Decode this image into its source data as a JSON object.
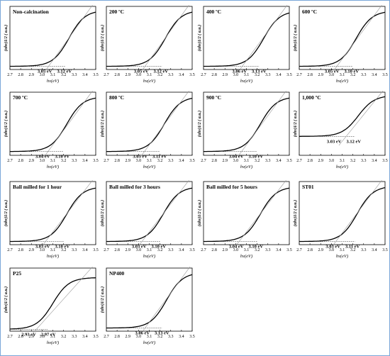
{
  "figure": {
    "panels": [
      {
        "title": "Non-calcination",
        "eg1": "3.05 eV",
        "eg2": "3.12 eV"
      },
      {
        "title": "200 ºC",
        "eg1": "3.05 eV",
        "eg2": "3.12 eV"
      },
      {
        "title": "400 ºC",
        "eg1": "3.06 eV",
        "eg2": "3.13 eV"
      },
      {
        "title": "600 ºC",
        "eg1": "3.05 eV",
        "eg2": "3.10 eV"
      },
      {
        "title": "700 ºC",
        "eg1": "3.04 eV",
        "eg2": "3.10 eV"
      },
      {
        "title": "800 ºC",
        "eg1": "3.05 eV",
        "eg2": "3.11 eV"
      },
      {
        "title": "900 ºC",
        "eg1": "3.04 eV",
        "eg2": "3.10 eV"
      },
      {
        "title": "1,000 ºC",
        "eg1": "3.03 eV",
        "eg2": "3.12 eV"
      },
      {
        "title": "Ball milled for 1 hour",
        "eg1": "3.03 eV",
        "eg2": "3.10 eV"
      },
      {
        "title": "Ball milled for 3 hours",
        "eg1": "3.03 eV",
        "eg2": "3.10 eV"
      },
      {
        "title": "Ball milled for 5 hours",
        "eg1": "3.04 eV",
        "eg2": "3.10 eV"
      },
      {
        "title": "ST01",
        "eg1": "3.03 eV",
        "eg2": "3.11 eV"
      },
      {
        "title": "P25",
        "eg1": "2.93 eV",
        "eg2": "2.97 eV"
      },
      {
        "title": "NP400",
        "eg1": "3.06 eV",
        "eg2": "3.13 eV"
      }
    ]
  },
  "chart_data": {
    "type": "line",
    "xlabel": "hv(eV)",
    "ylabel": "(αhν)1/2 ( a.u.)",
    "xlim": [
      2.7,
      3.5
    ],
    "xticks": [
      "2.7",
      "2.8",
      "2.9",
      "3.0",
      "3.1",
      "3.2",
      "3.3",
      "3.4",
      "3.5"
    ],
    "grid": false,
    "colors": {
      "curve": "#000000",
      "tangent": "#9a9a9a",
      "baseline": "#444444",
      "frame": "#7aa7d8"
    },
    "panels": [
      {
        "title": "Non-calcination",
        "edge": 3.12,
        "base": 0.05,
        "top": 0.94,
        "slope": 0.23,
        "baseline_x": [
          2.88,
          3.22
        ],
        "tangent_x": [
          3.03,
          3.47
        ]
      },
      {
        "title": "200 ºC",
        "edge": 3.12,
        "base": 0.05,
        "top": 0.94,
        "slope": 0.23,
        "baseline_x": [
          2.88,
          3.22
        ],
        "tangent_x": [
          3.03,
          3.47
        ]
      },
      {
        "title": "400 ºC",
        "edge": 3.13,
        "base": 0.05,
        "top": 0.93,
        "slope": 0.22,
        "baseline_x": [
          2.88,
          3.22
        ],
        "tangent_x": [
          3.03,
          3.48
        ]
      },
      {
        "title": "600 ºC",
        "edge": 3.1,
        "base": 0.05,
        "top": 0.93,
        "slope": 0.22,
        "baseline_x": [
          2.88,
          3.2
        ],
        "tangent_x": [
          3.02,
          3.47
        ]
      },
      {
        "title": "700 ºC",
        "edge": 3.1,
        "base": 0.06,
        "top": 0.93,
        "slope": 0.22,
        "baseline_x": [
          2.88,
          3.2
        ],
        "tangent_x": [
          3.02,
          3.47
        ]
      },
      {
        "title": "800 ºC",
        "edge": 3.11,
        "base": 0.06,
        "top": 0.93,
        "slope": 0.22,
        "baseline_x": [
          2.88,
          3.2
        ],
        "tangent_x": [
          3.02,
          3.47
        ]
      },
      {
        "title": "900 ºC",
        "edge": 3.1,
        "base": 0.06,
        "top": 0.93,
        "slope": 0.22,
        "baseline_x": [
          2.88,
          3.2
        ],
        "tangent_x": [
          3.02,
          3.47
        ]
      },
      {
        "title": "1,000 ºC",
        "edge": 3.12,
        "base": 0.3,
        "top": 0.95,
        "slope": 0.24,
        "baseline_x": [
          2.88,
          3.22
        ],
        "tangent_x": [
          3.07,
          3.48
        ]
      },
      {
        "title": "Ball milled for 1 hour",
        "edge": 3.1,
        "base": 0.05,
        "top": 0.92,
        "slope": 0.21,
        "baseline_x": [
          2.85,
          3.2
        ],
        "tangent_x": [
          3.0,
          3.47
        ]
      },
      {
        "title": "Ball milled for 3 hours",
        "edge": 3.1,
        "base": 0.05,
        "top": 0.92,
        "slope": 0.21,
        "baseline_x": [
          2.85,
          3.2
        ],
        "tangent_x": [
          3.0,
          3.47
        ]
      },
      {
        "title": "Ball milled for 5 hours",
        "edge": 3.1,
        "base": 0.05,
        "top": 0.92,
        "slope": 0.21,
        "baseline_x": [
          2.85,
          3.2
        ],
        "tangent_x": [
          3.0,
          3.47
        ]
      },
      {
        "title": "ST01",
        "edge": 3.11,
        "base": 0.05,
        "top": 0.93,
        "slope": 0.22,
        "baseline_x": [
          2.86,
          3.22
        ],
        "tangent_x": [
          3.01,
          3.47
        ]
      },
      {
        "title": "P25",
        "edge": 2.97,
        "base": 0.03,
        "top": 0.85,
        "slope": 0.25,
        "baseline_x": [
          2.72,
          3.05
        ],
        "tangent_x": [
          2.92,
          3.47
        ]
      },
      {
        "title": "NP400",
        "edge": 3.13,
        "base": 0.05,
        "top": 0.93,
        "slope": 0.22,
        "baseline_x": [
          2.88,
          3.22
        ],
        "tangent_x": [
          3.03,
          3.48
        ]
      }
    ]
  }
}
